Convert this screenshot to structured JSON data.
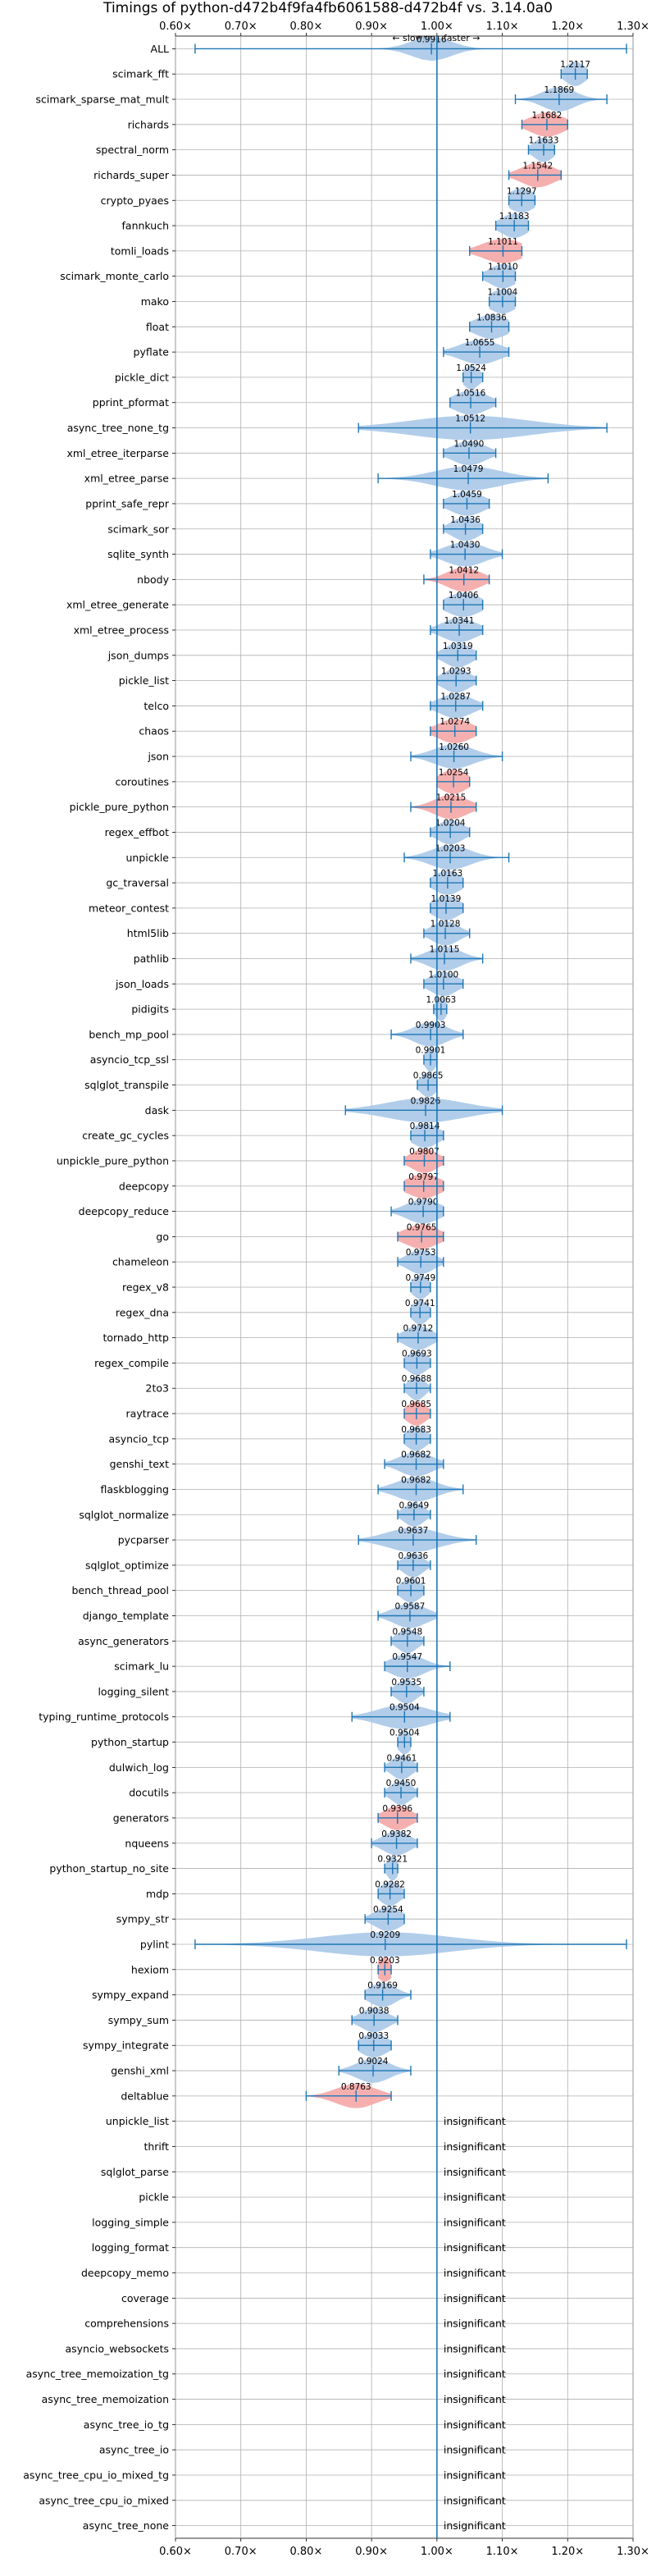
{
  "chart_data": {
    "type": "violin",
    "title": "Timings of python-d472b4f9fa4fb6061588-d472b4f vs. 3.14.0a0",
    "direction_labels": {
      "slower": "← slower",
      "faster": "faster →"
    },
    "xlim": [
      0.6,
      1.3
    ],
    "xticks": [
      "0.60×",
      "0.70×",
      "0.80×",
      "0.90×",
      "1.00×",
      "1.10×",
      "1.20×",
      "1.30×"
    ],
    "reference_line": 1.0,
    "grid": true,
    "colors": {
      "normal": "#a8c8e8",
      "significant_slower": "#f4a6a6",
      "line": "#1f77b4"
    },
    "insignificant_label": "insignificant",
    "rows": [
      {
        "name": "ALL",
        "value": 0.9916,
        "label": "0.9916",
        "min": 0.63,
        "max": 1.29,
        "spread": 0.03,
        "color": "blue"
      },
      {
        "name": "scimark_fft",
        "value": 1.2117,
        "label": "1.2117",
        "min": 1.19,
        "max": 1.23,
        "spread": 0.015,
        "color": "blue"
      },
      {
        "name": "scimark_sparse_mat_mult",
        "value": 1.1869,
        "label": "1.1869",
        "min": 1.12,
        "max": 1.26,
        "spread": 0.025,
        "color": "blue"
      },
      {
        "name": "richards",
        "value": 1.1682,
        "label": "1.1682",
        "min": 1.13,
        "max": 1.2,
        "spread": 0.025,
        "color": "red"
      },
      {
        "name": "spectral_norm",
        "value": 1.1633,
        "label": "1.1633",
        "min": 1.14,
        "max": 1.18,
        "spread": 0.015,
        "color": "blue"
      },
      {
        "name": "richards_super",
        "value": 1.1542,
        "label": "1.1542",
        "min": 1.11,
        "max": 1.19,
        "spread": 0.025,
        "color": "red"
      },
      {
        "name": "crypto_pyaes",
        "value": 1.1297,
        "label": "1.1297",
        "min": 1.11,
        "max": 1.15,
        "spread": 0.02,
        "color": "blue"
      },
      {
        "name": "fannkuch",
        "value": 1.1183,
        "label": "1.1183",
        "min": 1.09,
        "max": 1.14,
        "spread": 0.02,
        "color": "blue"
      },
      {
        "name": "tomli_loads",
        "value": 1.1011,
        "label": "1.1011",
        "min": 1.05,
        "max": 1.13,
        "spread": 0.03,
        "color": "red"
      },
      {
        "name": "scimark_monte_carlo",
        "value": 1.101,
        "label": "1.1010",
        "min": 1.07,
        "max": 1.12,
        "spread": 0.02,
        "color": "blue"
      },
      {
        "name": "mako",
        "value": 1.1004,
        "label": "1.1004",
        "min": 1.08,
        "max": 1.12,
        "spread": 0.02,
        "color": "blue"
      },
      {
        "name": "float",
        "value": 1.0836,
        "label": "1.0836",
        "min": 1.05,
        "max": 1.11,
        "spread": 0.025,
        "color": "blue"
      },
      {
        "name": "pyflate",
        "value": 1.0655,
        "label": "1.0655",
        "min": 1.01,
        "max": 1.11,
        "spread": 0.03,
        "color": "blue"
      },
      {
        "name": "pickle_dict",
        "value": 1.0524,
        "label": "1.0524",
        "min": 1.04,
        "max": 1.07,
        "spread": 0.012,
        "color": "blue"
      },
      {
        "name": "pprint_pformat",
        "value": 1.0516,
        "label": "1.0516",
        "min": 1.02,
        "max": 1.09,
        "spread": 0.025,
        "color": "blue"
      },
      {
        "name": "async_tree_none_tg",
        "value": 1.0512,
        "label": "1.0512",
        "min": 0.88,
        "max": 1.26,
        "spread": 0.09,
        "color": "blue"
      },
      {
        "name": "xml_etree_iterparse",
        "value": 1.049,
        "label": "1.0490",
        "min": 1.01,
        "max": 1.09,
        "spread": 0.025,
        "color": "blue"
      },
      {
        "name": "xml_etree_parse",
        "value": 1.0479,
        "label": "1.0479",
        "min": 0.91,
        "max": 1.17,
        "spread": 0.05,
        "color": "blue"
      },
      {
        "name": "pprint_safe_repr",
        "value": 1.0459,
        "label": "1.0459",
        "min": 1.01,
        "max": 1.08,
        "spread": 0.025,
        "color": "blue"
      },
      {
        "name": "scimark_sor",
        "value": 1.0436,
        "label": "1.0436",
        "min": 1.01,
        "max": 1.07,
        "spread": 0.02,
        "color": "blue"
      },
      {
        "name": "sqlite_synth",
        "value": 1.043,
        "label": "1.0430",
        "min": 0.99,
        "max": 1.1,
        "spread": 0.03,
        "color": "blue"
      },
      {
        "name": "nbody",
        "value": 1.0412,
        "label": "1.0412",
        "min": 0.98,
        "max": 1.08,
        "spread": 0.025,
        "color": "red"
      },
      {
        "name": "xml_etree_generate",
        "value": 1.0406,
        "label": "1.0406",
        "min": 1.01,
        "max": 1.07,
        "spread": 0.025,
        "color": "blue"
      },
      {
        "name": "xml_etree_process",
        "value": 1.0341,
        "label": "1.0341",
        "min": 0.99,
        "max": 1.07,
        "spread": 0.025,
        "color": "blue"
      },
      {
        "name": "json_dumps",
        "value": 1.0319,
        "label": "1.0319",
        "min": 1.0,
        "max": 1.06,
        "spread": 0.02,
        "color": "blue"
      },
      {
        "name": "pickle_list",
        "value": 1.0293,
        "label": "1.0293",
        "min": 1.0,
        "max": 1.06,
        "spread": 0.02,
        "color": "blue"
      },
      {
        "name": "telco",
        "value": 1.0287,
        "label": "1.0287",
        "min": 0.99,
        "max": 1.07,
        "spread": 0.025,
        "color": "blue"
      },
      {
        "name": "chaos",
        "value": 1.0274,
        "label": "1.0274",
        "min": 0.99,
        "max": 1.06,
        "spread": 0.025,
        "color": "red"
      },
      {
        "name": "json",
        "value": 1.026,
        "label": "1.0260",
        "min": 0.96,
        "max": 1.1,
        "spread": 0.03,
        "color": "blue"
      },
      {
        "name": "coroutines",
        "value": 1.0254,
        "label": "1.0254",
        "min": 1.0,
        "max": 1.05,
        "spread": 0.02,
        "color": "red"
      },
      {
        "name": "pickle_pure_python",
        "value": 1.0215,
        "label": "1.0215",
        "min": 0.96,
        "max": 1.06,
        "spread": 0.025,
        "color": "red"
      },
      {
        "name": "regex_effbot",
        "value": 1.0204,
        "label": "1.0204",
        "min": 0.99,
        "max": 1.05,
        "spread": 0.02,
        "color": "blue"
      },
      {
        "name": "unpickle",
        "value": 1.0203,
        "label": "1.0203",
        "min": 0.95,
        "max": 1.11,
        "spread": 0.03,
        "color": "blue"
      },
      {
        "name": "gc_traversal",
        "value": 1.0163,
        "label": "1.0163",
        "min": 0.99,
        "max": 1.04,
        "spread": 0.02,
        "color": "blue"
      },
      {
        "name": "meteor_contest",
        "value": 1.0139,
        "label": "1.0139",
        "min": 0.99,
        "max": 1.04,
        "spread": 0.02,
        "color": "blue"
      },
      {
        "name": "html5lib",
        "value": 1.0128,
        "label": "1.0128",
        "min": 0.98,
        "max": 1.05,
        "spread": 0.02,
        "color": "blue"
      },
      {
        "name": "pathlib",
        "value": 1.0115,
        "label": "1.0115",
        "min": 0.96,
        "max": 1.07,
        "spread": 0.025,
        "color": "blue"
      },
      {
        "name": "json_loads",
        "value": 1.01,
        "label": "1.0100",
        "min": 0.98,
        "max": 1.04,
        "spread": 0.02,
        "color": "blue"
      },
      {
        "name": "pidigits",
        "value": 1.0063,
        "label": "1.0063",
        "min": 0.995,
        "max": 1.015,
        "spread": 0.008,
        "color": "blue"
      },
      {
        "name": "bench_mp_pool",
        "value": 0.9903,
        "label": "0.9903",
        "min": 0.93,
        "max": 1.04,
        "spread": 0.025,
        "color": "blue"
      },
      {
        "name": "asyncio_tcp_ssl",
        "value": 0.9901,
        "label": "0.9901",
        "min": 0.98,
        "max": 1.0,
        "spread": 0.008,
        "color": "blue"
      },
      {
        "name": "sqlglot_transpile",
        "value": 0.9865,
        "label": "0.9865",
        "min": 0.97,
        "max": 1.0,
        "spread": 0.012,
        "color": "blue"
      },
      {
        "name": "dask",
        "value": 0.9826,
        "label": "0.9826",
        "min": 0.86,
        "max": 1.1,
        "spread": 0.06,
        "color": "blue"
      },
      {
        "name": "create_gc_cycles",
        "value": 0.9814,
        "label": "0.9814",
        "min": 0.96,
        "max": 1.01,
        "spread": 0.02,
        "color": "blue"
      },
      {
        "name": "unpickle_pure_python",
        "value": 0.9807,
        "label": "0.9807",
        "min": 0.95,
        "max": 1.01,
        "spread": 0.02,
        "color": "red"
      },
      {
        "name": "deepcopy",
        "value": 0.9797,
        "label": "0.9797",
        "min": 0.95,
        "max": 1.01,
        "spread": 0.025,
        "color": "red"
      },
      {
        "name": "deepcopy_reduce",
        "value": 0.979,
        "label": "0.9790",
        "min": 0.93,
        "max": 1.01,
        "spread": 0.025,
        "color": "blue"
      },
      {
        "name": "go",
        "value": 0.9765,
        "label": "0.9765",
        "min": 0.94,
        "max": 1.01,
        "spread": 0.025,
        "color": "red"
      },
      {
        "name": "chameleon",
        "value": 0.9753,
        "label": "0.9753",
        "min": 0.94,
        "max": 1.01,
        "spread": 0.02,
        "color": "blue"
      },
      {
        "name": "regex_v8",
        "value": 0.9749,
        "label": "0.9749",
        "min": 0.96,
        "max": 0.99,
        "spread": 0.012,
        "color": "blue"
      },
      {
        "name": "regex_dna",
        "value": 0.9741,
        "label": "0.9741",
        "min": 0.96,
        "max": 0.99,
        "spread": 0.012,
        "color": "blue"
      },
      {
        "name": "tornado_http",
        "value": 0.9712,
        "label": "0.9712",
        "min": 0.94,
        "max": 1.0,
        "spread": 0.02,
        "color": "blue"
      },
      {
        "name": "regex_compile",
        "value": 0.9693,
        "label": "0.9693",
        "min": 0.95,
        "max": 0.99,
        "spread": 0.015,
        "color": "blue"
      },
      {
        "name": "2to3",
        "value": 0.9688,
        "label": "0.9688",
        "min": 0.95,
        "max": 0.99,
        "spread": 0.012,
        "color": "blue"
      },
      {
        "name": "raytrace",
        "value": 0.9685,
        "label": "0.9685",
        "min": 0.95,
        "max": 0.99,
        "spread": 0.015,
        "color": "red"
      },
      {
        "name": "asyncio_tcp",
        "value": 0.9683,
        "label": "0.9683",
        "min": 0.95,
        "max": 0.99,
        "spread": 0.015,
        "color": "blue"
      },
      {
        "name": "genshi_text",
        "value": 0.9682,
        "label": "0.9682",
        "min": 0.92,
        "max": 1.01,
        "spread": 0.025,
        "color": "blue"
      },
      {
        "name": "flaskblogging",
        "value": 0.9682,
        "label": "0.9682",
        "min": 0.91,
        "max": 1.04,
        "spread": 0.03,
        "color": "blue"
      },
      {
        "name": "sqlglot_normalize",
        "value": 0.9649,
        "label": "0.9649",
        "min": 0.94,
        "max": 0.99,
        "spread": 0.015,
        "color": "blue"
      },
      {
        "name": "pycparser",
        "value": 0.9637,
        "label": "0.9637",
        "min": 0.88,
        "max": 1.06,
        "spread": 0.04,
        "color": "blue"
      },
      {
        "name": "sqlglot_optimize",
        "value": 0.9636,
        "label": "0.9636",
        "min": 0.94,
        "max": 0.99,
        "spread": 0.015,
        "color": "blue"
      },
      {
        "name": "bench_thread_pool",
        "value": 0.9601,
        "label": "0.9601",
        "min": 0.94,
        "max": 0.98,
        "spread": 0.015,
        "color": "blue"
      },
      {
        "name": "django_template",
        "value": 0.9587,
        "label": "0.9587",
        "min": 0.91,
        "max": 1.0,
        "spread": 0.025,
        "color": "blue"
      },
      {
        "name": "async_generators",
        "value": 0.9548,
        "label": "0.9548",
        "min": 0.93,
        "max": 0.98,
        "spread": 0.015,
        "color": "blue"
      },
      {
        "name": "scimark_lu",
        "value": 0.9547,
        "label": "0.9547",
        "min": 0.92,
        "max": 1.02,
        "spread": 0.025,
        "color": "blue"
      },
      {
        "name": "logging_silent",
        "value": 0.9535,
        "label": "0.9535",
        "min": 0.93,
        "max": 0.98,
        "spread": 0.015,
        "color": "blue"
      },
      {
        "name": "typing_runtime_protocols",
        "value": 0.9504,
        "label": "0.9504",
        "min": 0.87,
        "max": 1.02,
        "spread": 0.04,
        "color": "blue"
      },
      {
        "name": "python_startup",
        "value": 0.9504,
        "label": "0.9504",
        "min": 0.94,
        "max": 0.96,
        "spread": 0.01,
        "color": "blue"
      },
      {
        "name": "dulwich_log",
        "value": 0.9461,
        "label": "0.9461",
        "min": 0.92,
        "max": 0.97,
        "spread": 0.015,
        "color": "blue"
      },
      {
        "name": "docutils",
        "value": 0.945,
        "label": "0.9450",
        "min": 0.92,
        "max": 0.97,
        "spread": 0.015,
        "color": "blue"
      },
      {
        "name": "generators",
        "value": 0.9396,
        "label": "0.9396",
        "min": 0.91,
        "max": 0.97,
        "spread": 0.02,
        "color": "red"
      },
      {
        "name": "nqueens",
        "value": 0.9382,
        "label": "0.9382",
        "min": 0.9,
        "max": 0.97,
        "spread": 0.02,
        "color": "blue"
      },
      {
        "name": "python_startup_no_site",
        "value": 0.9321,
        "label": "0.9321",
        "min": 0.92,
        "max": 0.94,
        "spread": 0.008,
        "color": "blue"
      },
      {
        "name": "mdp",
        "value": 0.9282,
        "label": "0.9282",
        "min": 0.91,
        "max": 0.95,
        "spread": 0.015,
        "color": "blue"
      },
      {
        "name": "sympy_str",
        "value": 0.9254,
        "label": "0.9254",
        "min": 0.89,
        "max": 0.95,
        "spread": 0.02,
        "color": "blue"
      },
      {
        "name": "pylint",
        "value": 0.9209,
        "label": "0.9209",
        "min": 0.63,
        "max": 1.29,
        "spread": 0.1,
        "color": "blue"
      },
      {
        "name": "hexiom",
        "value": 0.9203,
        "label": "0.9203",
        "min": 0.91,
        "max": 0.93,
        "spread": 0.012,
        "color": "red"
      },
      {
        "name": "sympy_expand",
        "value": 0.9169,
        "label": "0.9169",
        "min": 0.89,
        "max": 0.96,
        "spread": 0.02,
        "color": "blue"
      },
      {
        "name": "sympy_sum",
        "value": 0.9038,
        "label": "0.9038",
        "min": 0.87,
        "max": 0.94,
        "spread": 0.02,
        "color": "blue"
      },
      {
        "name": "sympy_integrate",
        "value": 0.9033,
        "label": "0.9033",
        "min": 0.88,
        "max": 0.93,
        "spread": 0.02,
        "color": "blue"
      },
      {
        "name": "genshi_xml",
        "value": 0.9024,
        "label": "0.9024",
        "min": 0.85,
        "max": 0.96,
        "spread": 0.025,
        "color": "blue"
      },
      {
        "name": "deltablue",
        "value": 0.8763,
        "label": "0.8763",
        "min": 0.8,
        "max": 0.93,
        "spread": 0.03,
        "color": "red"
      },
      {
        "name": "unpickle_list",
        "value": null,
        "label": "insignificant"
      },
      {
        "name": "thrift",
        "value": null,
        "label": "insignificant"
      },
      {
        "name": "sqlglot_parse",
        "value": null,
        "label": "insignificant"
      },
      {
        "name": "pickle",
        "value": null,
        "label": "insignificant"
      },
      {
        "name": "logging_simple",
        "value": null,
        "label": "insignificant"
      },
      {
        "name": "logging_format",
        "value": null,
        "label": "insignificant"
      },
      {
        "name": "deepcopy_memo",
        "value": null,
        "label": "insignificant"
      },
      {
        "name": "coverage",
        "value": null,
        "label": "insignificant"
      },
      {
        "name": "comprehensions",
        "value": null,
        "label": "insignificant"
      },
      {
        "name": "asyncio_websockets",
        "value": null,
        "label": "insignificant"
      },
      {
        "name": "async_tree_memoization_tg",
        "value": null,
        "label": "insignificant"
      },
      {
        "name": "async_tree_memoization",
        "value": null,
        "label": "insignificant"
      },
      {
        "name": "async_tree_io_tg",
        "value": null,
        "label": "insignificant"
      },
      {
        "name": "async_tree_io",
        "value": null,
        "label": "insignificant"
      },
      {
        "name": "async_tree_cpu_io_mixed_tg",
        "value": null,
        "label": "insignificant"
      },
      {
        "name": "async_tree_cpu_io_mixed",
        "value": null,
        "label": "insignificant"
      },
      {
        "name": "async_tree_none",
        "value": null,
        "label": "insignificant"
      }
    ]
  }
}
